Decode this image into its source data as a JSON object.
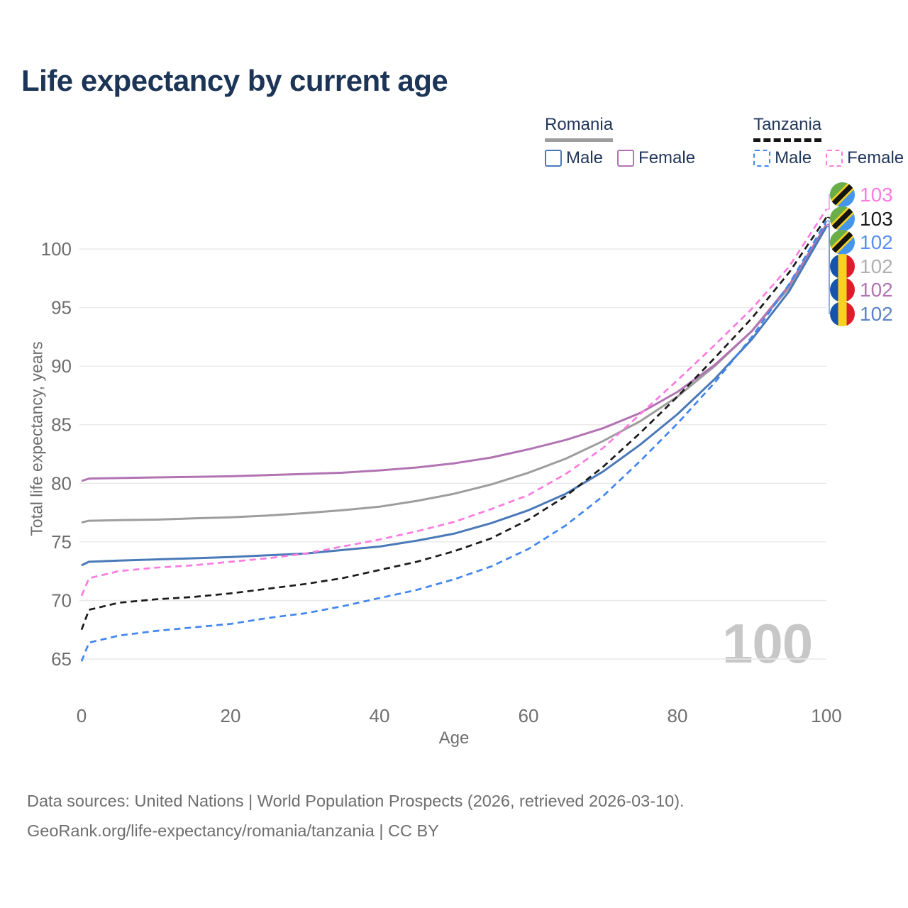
{
  "title": "Life expectancy by current age",
  "legend": {
    "groups": [
      {
        "label": "Romania",
        "style": "solid",
        "items": [
          {
            "label": "Male",
            "color": "#4a79b8"
          },
          {
            "label": "Female",
            "color": "#b273b2"
          }
        ]
      },
      {
        "label": "Tanzania",
        "style": "dashed",
        "items": [
          {
            "label": "Male",
            "color": "#4186ef"
          },
          {
            "label": "Female",
            "color": "#fb7be0"
          }
        ]
      }
    ]
  },
  "axes": {
    "y_title": "Total life expectancy, years",
    "x_title": "Age",
    "yticks": [
      65,
      70,
      75,
      80,
      85,
      90,
      95,
      100
    ],
    "xticks": [
      0,
      20,
      40,
      60,
      80,
      100
    ]
  },
  "watermark": "100",
  "footer": {
    "line1": "Data sources: United Nations | World Population Prospects (2026, retrieved 2026-03-10).",
    "line2": "GeoRank.org/life-expectancy/romania/tanzania | CC BY"
  },
  "colors": {
    "grid": "#e9e9e9",
    "tick_text": "#6e6e6e",
    "title_text": "#1c3557"
  },
  "chart_data": {
    "type": "line",
    "title": "Life expectancy by current age",
    "xlabel": "Age",
    "ylabel": "Total life expectancy, years",
    "x_range": [
      0,
      100
    ],
    "y_range": [
      65,
      103.5
    ],
    "grid": "horizontal",
    "x": [
      0,
      1,
      5,
      10,
      15,
      20,
      25,
      30,
      35,
      40,
      45,
      50,
      55,
      60,
      65,
      70,
      75,
      80,
      85,
      90,
      95,
      100
    ],
    "series": [
      {
        "key": "romania_total",
        "name": "Romania Both sexes",
        "country": "romania",
        "style": "solid",
        "color": "#9d9d9d",
        "values": [
          76.65,
          76.8,
          76.85,
          76.9,
          77.0,
          77.1,
          77.25,
          77.45,
          77.7,
          78.0,
          78.5,
          79.1,
          79.9,
          80.9,
          82.1,
          83.6,
          85.3,
          87.4,
          90.0,
          93.0,
          96.7,
          102.0
        ]
      },
      {
        "key": "romania_female",
        "name": "Romania Female",
        "country": "romania",
        "style": "solid",
        "color": "#b273b2",
        "values": [
          80.2,
          80.4,
          80.45,
          80.5,
          80.55,
          80.6,
          80.7,
          80.8,
          80.9,
          81.1,
          81.35,
          81.7,
          82.2,
          82.9,
          83.7,
          84.7,
          86.0,
          87.8,
          90.1,
          93.0,
          96.9,
          102.1
        ]
      },
      {
        "key": "romania_male",
        "name": "Romania Male",
        "country": "romania",
        "style": "solid",
        "color": "#4a79b8",
        "values": [
          73.0,
          73.3,
          73.4,
          73.5,
          73.6,
          73.7,
          73.85,
          74.0,
          74.3,
          74.6,
          75.1,
          75.7,
          76.6,
          77.7,
          79.1,
          81.0,
          83.3,
          85.9,
          88.9,
          92.3,
          96.4,
          101.9
        ]
      },
      {
        "key": "tanzania_total",
        "name": "Tanzania Both sexes",
        "country": "tanzania",
        "style": "dashed",
        "color": "#1a1a1a",
        "values": [
          67.5,
          69.2,
          69.8,
          70.1,
          70.3,
          70.6,
          71.0,
          71.4,
          71.9,
          72.6,
          73.3,
          74.2,
          75.3,
          76.9,
          78.9,
          81.4,
          84.3,
          87.4,
          90.7,
          94.1,
          98.0,
          102.7
        ]
      },
      {
        "key": "tanzania_male",
        "name": "Tanzania Male",
        "country": "tanzania",
        "style": "dashed",
        "color": "#4186ef",
        "values": [
          64.8,
          66.4,
          67.0,
          67.4,
          67.7,
          68.0,
          68.5,
          68.9,
          69.5,
          70.2,
          70.9,
          71.8,
          72.9,
          74.4,
          76.4,
          78.9,
          81.9,
          85.1,
          88.6,
          92.5,
          97.0,
          102.4
        ]
      },
      {
        "key": "tanzania_female",
        "name": "Tanzania Female",
        "country": "tanzania",
        "style": "dashed",
        "color": "#fb7be0",
        "values": [
          70.4,
          71.9,
          72.5,
          72.8,
          73.0,
          73.3,
          73.6,
          74.0,
          74.6,
          75.2,
          75.9,
          76.7,
          77.8,
          79.0,
          80.8,
          83.0,
          85.9,
          88.8,
          91.8,
          94.9,
          98.5,
          103.4
        ]
      }
    ],
    "end_labels": [
      {
        "value": "103",
        "series_key": "tanzania_female",
        "country": "tanzania",
        "color": "#fb7be0"
      },
      {
        "value": "103",
        "series_key": "tanzania_total",
        "country": "tanzania",
        "color": "#1a1a1a"
      },
      {
        "value": "102",
        "series_key": "tanzania_male",
        "country": "tanzania",
        "color": "#5a8df0"
      },
      {
        "value": "102",
        "series_key": "romania_total",
        "country": "romania",
        "color": "#b0b0b0"
      },
      {
        "value": "102",
        "series_key": "romania_female",
        "country": "romania",
        "color": "#b273b2"
      },
      {
        "value": "102",
        "series_key": "romania_male",
        "country": "romania",
        "color": "#5b83c8"
      }
    ]
  }
}
